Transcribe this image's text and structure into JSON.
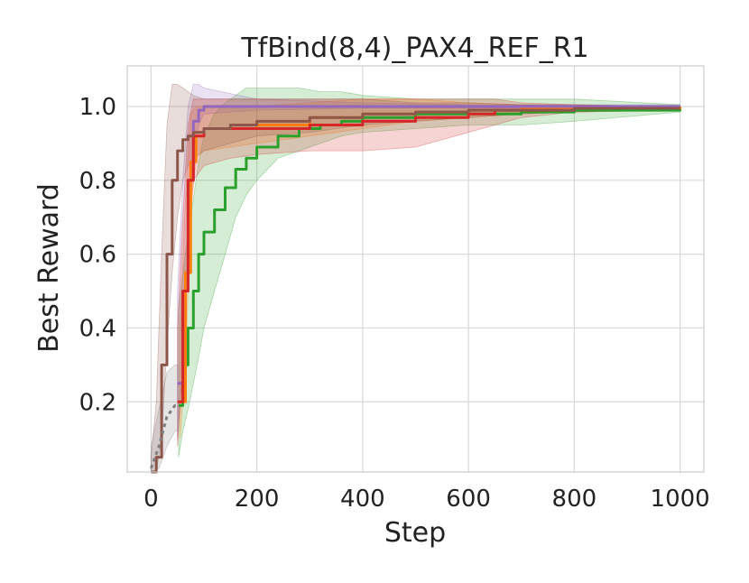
{
  "chart_data": {
    "type": "line",
    "title": "TfBind(8,4)_PAX4_REF_R1",
    "xlabel": "Step",
    "ylabel": "Best Reward",
    "xlim": [
      -45,
      1045
    ],
    "ylim": [
      0.01,
      1.11
    ],
    "xticks": [
      0,
      200,
      400,
      600,
      800,
      1000
    ],
    "xtick_labels": [
      "0",
      "200",
      "400",
      "600",
      "800",
      "1000"
    ],
    "yticks": [
      0.2,
      0.4,
      0.6,
      0.8,
      1.0
    ],
    "ytick_labels": [
      "0.2",
      "0.4",
      "0.6",
      "0.8",
      "1.0"
    ],
    "grid": true,
    "series": [
      {
        "color": "#2ca02c",
        "x": [
          52,
          60,
          70,
          80,
          90,
          100,
          120,
          140,
          160,
          180,
          200,
          240,
          280,
          320,
          360,
          400,
          500,
          600,
          700,
          800,
          1000
        ],
        "y": [
          0.19,
          0.3,
          0.4,
          0.5,
          0.6,
          0.66,
          0.72,
          0.78,
          0.83,
          0.86,
          0.89,
          0.92,
          0.94,
          0.95,
          0.96,
          0.97,
          0.98,
          0.98,
          0.985,
          0.99,
          0.995
        ],
        "lower": [
          0.05,
          0.12,
          0.18,
          0.25,
          0.32,
          0.4,
          0.5,
          0.6,
          0.7,
          0.76,
          0.8,
          0.86,
          0.88,
          0.9,
          0.92,
          0.93,
          0.94,
          0.95,
          0.95,
          0.96,
          0.985
        ],
        "upper": [
          0.45,
          0.55,
          0.65,
          0.75,
          0.85,
          0.92,
          0.98,
          1.01,
          1.03,
          1.05,
          1.05,
          1.05,
          1.05,
          1.04,
          1.04,
          1.03,
          1.02,
          1.02,
          1.02,
          1.02,
          1.005
        ]
      },
      {
        "color": "#ff7f0e",
        "x": [
          55,
          65,
          75,
          85,
          100,
          200,
          300,
          400,
          500,
          600,
          700,
          800,
          1000
        ],
        "y": [
          0.2,
          0.55,
          0.85,
          0.92,
          0.94,
          0.95,
          0.97,
          0.98,
          0.985,
          0.99,
          0.995,
          0.995,
          1.0
        ],
        "lower": [
          0.1,
          0.3,
          0.7,
          0.86,
          0.88,
          0.9,
          0.92,
          0.94,
          0.96,
          0.97,
          0.98,
          0.985,
          0.995
        ],
        "upper": [
          0.4,
          0.75,
          0.98,
          1.0,
          1.0,
          1.0,
          1.01,
          1.02,
          1.02,
          1.01,
          1.005,
          1.0,
          1.0
        ]
      },
      {
        "color": "#9467bd",
        "x": [
          50,
          60,
          70,
          80,
          90,
          100,
          200,
          400,
          600,
          800,
          1000
        ],
        "y": [
          0.25,
          0.5,
          0.8,
          0.96,
          0.99,
          1.0,
          1.0,
          1.0,
          1.0,
          1.0,
          1.0
        ],
        "lower": [
          0.1,
          0.3,
          0.6,
          0.88,
          0.95,
          0.98,
          0.99,
          0.995,
          0.995,
          0.995,
          0.995
        ],
        "upper": [
          0.5,
          0.8,
          1.0,
          1.06,
          1.06,
          1.05,
          1.02,
          1.01,
          1.005,
          1.005,
          1.005
        ]
      },
      {
        "color": "#d62728",
        "x": [
          50,
          60,
          70,
          80,
          100,
          150,
          200,
          300,
          400,
          500,
          600,
          650,
          700,
          800,
          1000
        ],
        "y": [
          0.2,
          0.5,
          0.8,
          0.92,
          0.94,
          0.94,
          0.94,
          0.95,
          0.96,
          0.97,
          0.98,
          0.99,
          0.99,
          0.995,
          0.995
        ],
        "lower": [
          0.08,
          0.3,
          0.65,
          0.8,
          0.84,
          0.86,
          0.87,
          0.88,
          0.88,
          0.89,
          0.93,
          0.95,
          0.97,
          0.985,
          0.99
        ],
        "upper": [
          0.4,
          0.7,
          0.95,
          1.02,
          1.02,
          1.02,
          1.02,
          1.02,
          1.02,
          1.02,
          1.02,
          1.02,
          1.01,
          1.005,
          1.0
        ]
      },
      {
        "color": "#8c564b",
        "x": [
          0,
          10,
          20,
          30,
          40,
          50,
          60,
          70,
          80,
          100,
          150,
          200,
          300,
          400,
          500,
          600,
          700,
          800,
          1000
        ],
        "y": [
          0.01,
          0.05,
          0.3,
          0.6,
          0.8,
          0.88,
          0.91,
          0.92,
          0.93,
          0.94,
          0.95,
          0.96,
          0.97,
          0.98,
          0.985,
          0.99,
          0.99,
          0.995,
          0.995
        ],
        "lower": [
          0.0,
          0.0,
          0.1,
          0.35,
          0.55,
          0.7,
          0.8,
          0.84,
          0.86,
          0.88,
          0.9,
          0.92,
          0.93,
          0.95,
          0.96,
          0.97,
          0.98,
          0.985,
          0.99
        ],
        "upper": [
          0.05,
          0.2,
          0.6,
          0.95,
          1.06,
          1.06,
          1.05,
          1.04,
          1.03,
          1.02,
          1.02,
          1.02,
          1.02,
          1.02,
          1.01,
          1.01,
          1.005,
          1.005,
          1.0
        ]
      },
      {
        "color": "#7f7f7f",
        "dashed": true,
        "x": [
          0,
          15,
          30,
          45,
          52
        ],
        "y": [
          0.02,
          0.08,
          0.16,
          0.19,
          0.19
        ],
        "lower": [
          0.0,
          0.02,
          0.08,
          0.12,
          0.12
        ],
        "upper": [
          0.08,
          0.18,
          0.28,
          0.3,
          0.3
        ]
      }
    ]
  }
}
